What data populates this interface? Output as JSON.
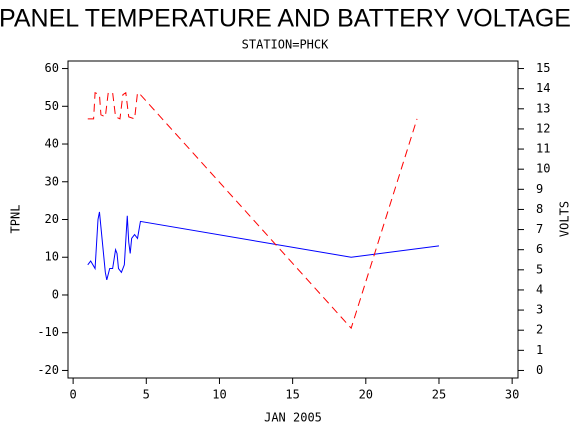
{
  "chart_data": {
    "type": "line",
    "title": "PANEL TEMPERATURE AND BATTERY VOLTAGE",
    "subtitle": "STATION=PHCK",
    "x_label": "JAN 2005",
    "y_label": "TPNL",
    "y2_label": "VOLTS",
    "xlim": [
      -0.35,
      30.4
    ],
    "ylim": [
      -22,
      62
    ],
    "y2lim": [
      -0.375,
      15.375
    ],
    "xticks": [
      0,
      5,
      10,
      15,
      20,
      25,
      30
    ],
    "yticks": [
      -20,
      -10,
      0,
      10,
      20,
      30,
      40,
      50,
      60
    ],
    "y2ticks": [
      0,
      1,
      2,
      3,
      4,
      5,
      6,
      7,
      8,
      9,
      10,
      11,
      12,
      13,
      14,
      15
    ],
    "series": [
      {
        "color": "#0000ff",
        "style": "solid",
        "axis": "y",
        "x": [
          1,
          1.2,
          1.5,
          1.7,
          1.8,
          2,
          2.2,
          2.3,
          2.5,
          2.7,
          2.9,
          3,
          3.1,
          3.3,
          3.5,
          3.7,
          3.8,
          3.9,
          4,
          4.2,
          4.4,
          4.6,
          19,
          25
        ],
        "values": [
          8,
          9,
          7,
          20,
          22,
          14,
          6,
          4,
          7,
          7,
          12,
          11,
          7,
          6,
          8,
          21,
          14,
          11,
          15,
          16,
          15,
          19.5,
          10,
          13
        ]
      },
      {
        "color": "#ff0000",
        "style": "dashed",
        "axis": "y2",
        "x": [
          1,
          1.4,
          1.5,
          1.8,
          1.9,
          2.2,
          2.4,
          2.7,
          2.9,
          3.2,
          3.4,
          3.6,
          3.8,
          4.2,
          4.4,
          4.6,
          19,
          23.5
        ],
        "values": [
          12.5,
          12.5,
          13.8,
          13.7,
          12.7,
          12.6,
          13.8,
          13.8,
          12.6,
          12.5,
          13.7,
          13.8,
          12.6,
          12.5,
          13.8,
          13.7,
          2.1,
          12.5
        ]
      }
    ]
  }
}
